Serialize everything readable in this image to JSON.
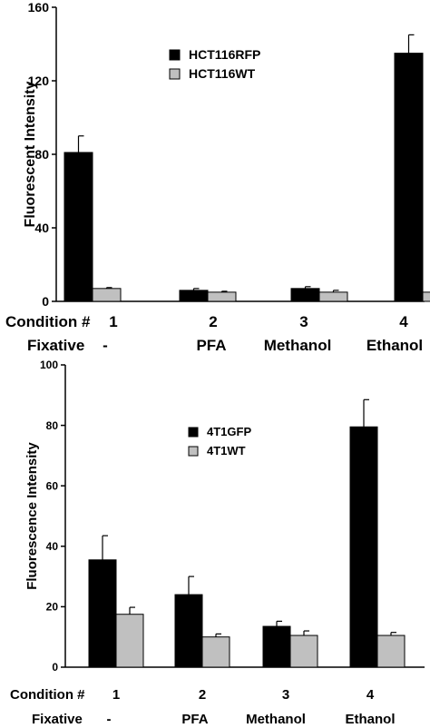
{
  "chart_data": [
    {
      "type": "bar",
      "categories": [
        "1",
        "2",
        "3",
        "4"
      ],
      "category_labels": {
        "condition_title": "Condition #",
        "fixative_title": "Fixative",
        "fixatives": [
          "-",
          "PFA",
          "Methanol",
          "Ethanol"
        ]
      },
      "series": [
        {
          "name": "HCT116RFP",
          "values": [
            81,
            6,
            7,
            135
          ],
          "errors": [
            9,
            1,
            1,
            10
          ],
          "color": "#000000"
        },
        {
          "name": "HCT116WT",
          "values": [
            7,
            5,
            5,
            5
          ],
          "errors": [
            0.5,
            0.5,
            1,
            0.5
          ],
          "color": "#c0c0c0"
        }
      ],
      "title": "",
      "xlabel": "",
      "ylabel": "Fluorescent Intensity",
      "ylim": [
        0,
        160
      ],
      "yticks": [
        "0",
        "40",
        "80",
        "120",
        "160"
      ],
      "grid": false,
      "legend": "top-center"
    },
    {
      "type": "bar",
      "categories": [
        "1",
        "2",
        "3",
        "4"
      ],
      "category_labels": {
        "condition_title": "Condition #",
        "fixative_title": "Fixative",
        "fixatives": [
          "-",
          "PFA",
          "Methanol",
          "Ethanol"
        ]
      },
      "series": [
        {
          "name": "4T1GFP",
          "values": [
            35.5,
            24,
            13.5,
            79.5
          ],
          "errors": [
            8,
            6,
            1.7,
            9
          ],
          "color": "#000000"
        },
        {
          "name": "4T1WT",
          "values": [
            17.5,
            10,
            10.5,
            10.5
          ],
          "errors": [
            2.3,
            1,
            1.5,
            1
          ],
          "color": "#c0c0c0"
        }
      ],
      "title": "",
      "xlabel": "",
      "ylabel": "Fluorescence Intensity",
      "ylim": [
        0,
        100
      ],
      "yticks": [
        "0",
        "20",
        "40",
        "60",
        "80",
        "100"
      ],
      "grid": false,
      "legend": "top-center"
    }
  ]
}
